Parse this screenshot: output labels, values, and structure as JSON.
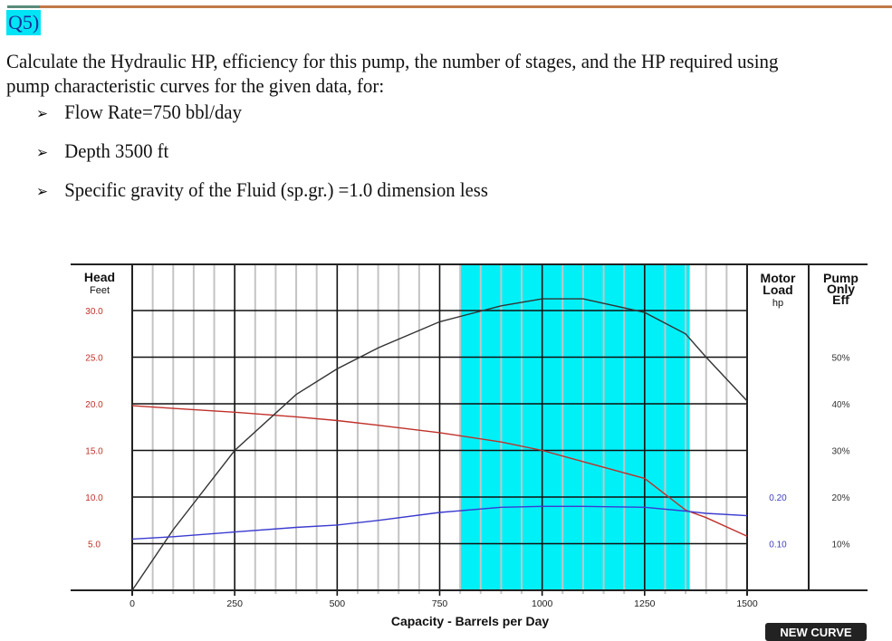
{
  "question": {
    "number": "Q5)",
    "prompt": "Calculate the Hydraulic HP, efficiency for this pump, the number of stages, and the HP required using pump characteristic curves for the given data, for:",
    "bullets": [
      {
        "icon": "arrow-bullet-icon",
        "glyph": "➢",
        "text": "Flow Rate=750 bbl/day"
      },
      {
        "icon": "arrow-bullet-icon",
        "glyph": "➢",
        "text": "Depth 3500 ft"
      },
      {
        "icon": "arrow-bullet-icon",
        "glyph": "➢",
        "text": "Specific gravity of the Fluid (sp.gr.) =1.0 dimension less"
      }
    ]
  },
  "colors": {
    "head_curve": "#c0302a",
    "efficiency_curve": "#333333",
    "hp_curve": "#3b3bd0",
    "recommended_range": "#00f0f8",
    "head_ticks": "#c0302a",
    "hp_ticks": "#4040c0",
    "rule": "#c0794a"
  },
  "chart_data": {
    "type": "line",
    "title": "",
    "xlabel": "Capacity - Barrels per Day",
    "ylabel": "Head Feet",
    "xlim": [
      0,
      1500
    ],
    "ylim": [
      0,
      35
    ],
    "x_ticks": [
      "0",
      "250",
      "500",
      "750",
      "1000",
      "1250",
      "1500"
    ],
    "y_ticks": [
      "5.0",
      "10.0",
      "15.0",
      "20.0",
      "25.0",
      "30.0"
    ],
    "y_axis_title": {
      "line1": "Head",
      "line2": "Feet"
    },
    "secondary_axes": [
      {
        "title_lines": [
          "Motor",
          "Load",
          "hp"
        ],
        "ticks": [
          "0.10",
          "0.20"
        ],
        "tick_values": [
          0.1,
          0.2
        ]
      },
      {
        "title_lines": [
          "Pump",
          "Only",
          "Eff"
        ],
        "ticks": [
          "10%",
          "20%",
          "30%",
          "40%",
          "50%"
        ],
        "tick_values": [
          10,
          20,
          30,
          40,
          50
        ]
      }
    ],
    "grid": {
      "major_x_step": 250,
      "minor_x_step": 50,
      "major_y_step": 5
    },
    "recommended_range": {
      "x_start": 800,
      "x_end": 1360
    },
    "x": [
      0,
      100,
      250,
      400,
      500,
      600,
      750,
      900,
      1000,
      1100,
      1250,
      1350,
      1400,
      1500
    ],
    "series": [
      {
        "name": "Head (ft)",
        "axis": "head",
        "values": [
          19.8,
          19.5,
          19.1,
          18.6,
          18.2,
          17.7,
          16.9,
          15.9,
          15.0,
          13.8,
          12.0,
          8.6,
          7.8,
          5.8
        ]
      },
      {
        "name": "Pump Only Eff (%)",
        "axis": "eff",
        "values": [
          0,
          13,
          30,
          42,
          47.5,
          52,
          57.6,
          61,
          62.5,
          62.5,
          59.6,
          55,
          50,
          40.6
        ]
      },
      {
        "name": "Motor Load (hp)",
        "axis": "hp",
        "values": [
          0.11,
          0.115,
          0.125,
          0.135,
          0.14,
          0.15,
          0.167,
          0.178,
          0.18,
          0.18,
          0.178,
          0.17,
          0.165,
          0.16
        ]
      }
    ]
  },
  "button": {
    "new_curve": "NEW CURVE"
  }
}
